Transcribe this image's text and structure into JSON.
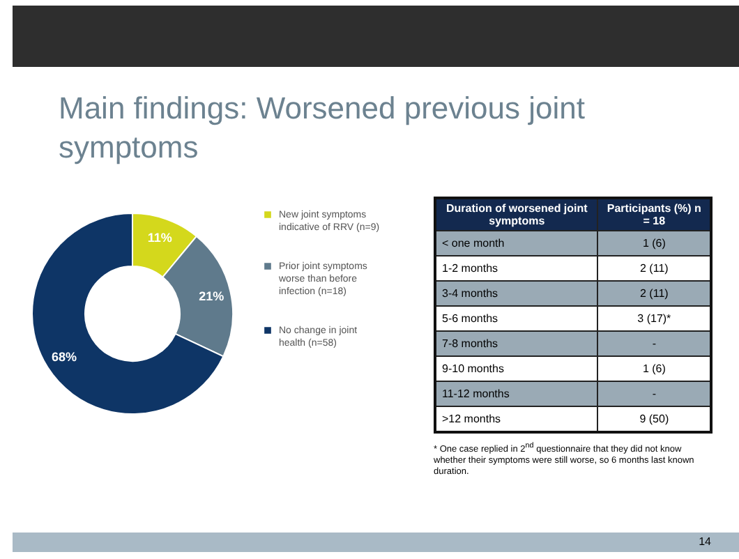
{
  "chart_data": [
    {
      "type": "donut",
      "title": "Main findings: Worsened previous joint symptoms",
      "categories": [
        "New joint symptoms indicative of RRV (n=9)",
        "Prior joint symptoms worse than before infection (n=18)",
        "No change in joint health (n=58)"
      ],
      "values": [
        11,
        21,
        68
      ],
      "value_labels": [
        "11%",
        "21%",
        "68%"
      ],
      "colors": [
        "#d4d81c",
        "#5f7a8c",
        "#0e3566"
      ],
      "legend": "right"
    },
    {
      "type": "other",
      "xlabel": "Duration of worsened joint symptoms",
      "ylabel": "Participants (%) n = 18",
      "categories": [
        "< one month",
        "1-2 months",
        "3-4 months",
        "5-6 months",
        "7-8 months",
        "9-10 months",
        "11-12 months",
        ">12 months"
      ],
      "value_labels": [
        "1 (6)",
        "2 (11)",
        "2 (11)",
        "3 (17)*",
        "-",
        "1 (6)",
        "-",
        "9 (50)"
      ],
      "annotations": [
        "* One case replied in 2$^{nd}$ questionnaire that they did not know whether their symptoms were still worse, so 6 months last known duration.",
        "14"
      ]
    }
  ]
}
